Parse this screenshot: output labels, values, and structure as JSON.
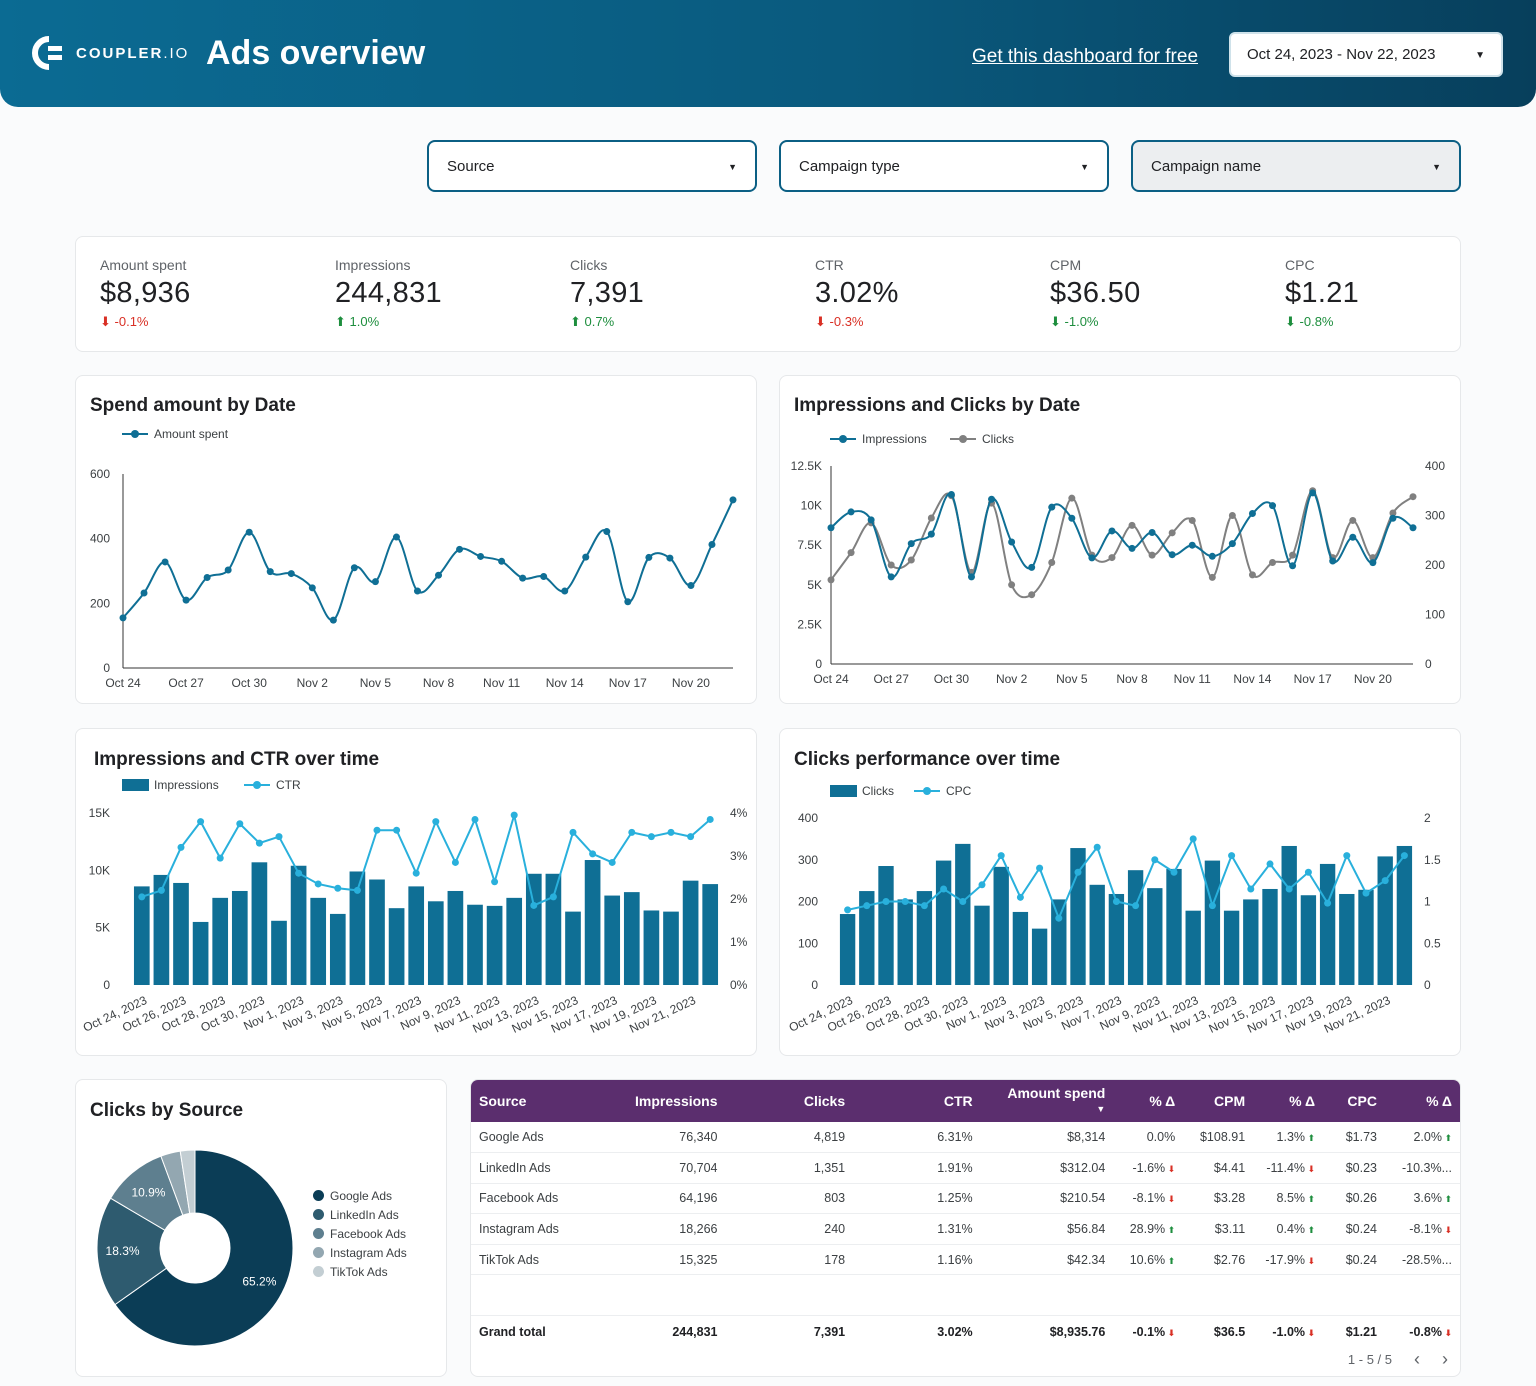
{
  "header": {
    "logo_text": "COUPLER",
    "logo_suffix": ".IO",
    "title": "Ads overview",
    "get_link": "Get this dashboard for free",
    "date_range": "Oct 24, 2023 - Nov 22, 2023"
  },
  "filters": [
    {
      "label": "Source"
    },
    {
      "label": "Campaign type"
    },
    {
      "label": "Campaign name"
    }
  ],
  "kpis": [
    {
      "label": "Amount spent",
      "value": "$8,936",
      "delta": "-0.1%",
      "dir": "down",
      "good": false
    },
    {
      "label": "Impressions",
      "value": "244,831",
      "delta": "1.0%",
      "dir": "up",
      "good": true
    },
    {
      "label": "Clicks",
      "value": "7,391",
      "delta": "0.7%",
      "dir": "up",
      "good": true
    },
    {
      "label": "CTR",
      "value": "3.02%",
      "delta": "-0.3%",
      "dir": "down",
      "good": false
    },
    {
      "label": "CPM",
      "value": "$36.50",
      "delta": "-1.0%",
      "dir": "down",
      "good": true
    },
    {
      "label": "CPC",
      "value": "$1.21",
      "delta": "-0.8%",
      "dir": "down",
      "good": true
    }
  ],
  "charts": {
    "spend_title": "Spend amount by Date",
    "imp_clicks_title": "Impressions and Clicks by Date",
    "imp_ctr_title": "Impressions and CTR over time",
    "clicks_perf_title": "Clicks performance over time",
    "by_source_title": "Clicks by Source"
  },
  "chart_data": [
    {
      "type": "line",
      "title": "Spend amount by Date",
      "x": [
        "Oct 24",
        "Oct 25",
        "Oct 26",
        "Oct 27",
        "Oct 28",
        "Oct 29",
        "Oct 30",
        "Oct 31",
        "Nov 1",
        "Nov 2",
        "Nov 3",
        "Nov 4",
        "Nov 5",
        "Nov 6",
        "Nov 7",
        "Nov 8",
        "Nov 9",
        "Nov 10",
        "Nov 11",
        "Nov 12",
        "Nov 13",
        "Nov 14",
        "Nov 15",
        "Nov 16",
        "Nov 17",
        "Nov 18",
        "Nov 19",
        "Nov 20",
        "Nov 21",
        "Nov 22"
      ],
      "x_ticks": [
        "Oct 24",
        "Oct 27",
        "Oct 30",
        "Nov 2",
        "Nov 5",
        "Nov 8",
        "Nov 11",
        "Nov 14",
        "Nov 17",
        "Nov 20"
      ],
      "series": [
        {
          "name": "Amount spent",
          "color": "#0f6f95",
          "values": [
            155,
            232,
            328,
            210,
            280,
            303,
            420,
            298,
            292,
            248,
            148,
            310,
            267,
            405,
            238,
            287,
            367,
            345,
            330,
            278,
            283,
            238,
            343,
            422,
            205,
            342,
            340,
            255,
            382,
            520
          ]
        }
      ],
      "ylim": [
        0,
        600
      ],
      "y_ticks": [
        0,
        200,
        400,
        600
      ]
    },
    {
      "type": "line",
      "title": "Impressions and Clicks by Date",
      "x_ticks": [
        "Oct 24",
        "Oct 27",
        "Oct 30",
        "Nov 2",
        "Nov 5",
        "Nov 8",
        "Nov 11",
        "Nov 14",
        "Nov 17",
        "Nov 20"
      ],
      "series": [
        {
          "name": "Impressions",
          "axis": "left",
          "color": "#0f6f95",
          "values": [
            8600,
            9600,
            9100,
            5500,
            7600,
            8200,
            10700,
            5500,
            10400,
            7700,
            6100,
            9900,
            9200,
            6700,
            8400,
            7300,
            8300,
            6900,
            7500,
            6800,
            7600,
            9500,
            10000,
            6200,
            10800,
            6500,
            8000,
            6400,
            9200,
            8600
          ]
        },
        {
          "name": "Clicks",
          "axis": "right",
          "color": "#808080",
          "values": [
            170,
            225,
            285,
            200,
            210,
            295,
            340,
            185,
            325,
            160,
            140,
            205,
            335,
            220,
            215,
            280,
            220,
            265,
            290,
            175,
            300,
            180,
            205,
            220,
            350,
            215,
            290,
            215,
            305,
            338
          ]
        }
      ],
      "ylim_left": [
        0,
        12500
      ],
      "y_ticks_left": [
        "0",
        "2.5K",
        "5K",
        "7.5K",
        "10K",
        "12.5K"
      ],
      "ylim_right": [
        0,
        400
      ],
      "y_ticks_right": [
        0,
        100,
        200,
        300,
        400
      ]
    },
    {
      "type": "bar",
      "title": "Impressions and CTR over time",
      "x_ticks": [
        "Oct 24, 2023",
        "Oct 26, 2023",
        "Oct 28, 2023",
        "Oct 30, 2023",
        "Nov 1, 2023",
        "Nov 3, 2023",
        "Nov 5, 2023",
        "Nov 7, 2023",
        "Nov 9, 2023",
        "Nov 11, 2023",
        "Nov 13, 2023",
        "Nov 15, 2023",
        "Nov 17, 2023",
        "Nov 19, 2023",
        "Nov 21, 2023"
      ],
      "series": [
        {
          "name": "Impressions",
          "axis": "left",
          "color": "#0f6f95",
          "values": [
            8600,
            9600,
            8900,
            5500,
            7600,
            8200,
            10700,
            5600,
            10400,
            7600,
            6200,
            9900,
            9200,
            6700,
            8600,
            7300,
            8200,
            7000,
            6900,
            7600,
            9700,
            9700,
            6400,
            10900,
            7800,
            8100,
            6500,
            6400,
            9100,
            8800
          ]
        },
        {
          "name": "CTR",
          "axis": "right",
          "color": "#29b0dc",
          "values": [
            2.05,
            2.2,
            3.2,
            3.8,
            2.95,
            3.75,
            3.3,
            3.45,
            2.6,
            2.35,
            2.25,
            2.2,
            3.6,
            3.6,
            2.6,
            3.8,
            2.85,
            3.85,
            2.4,
            3.95,
            1.85,
            2.05,
            3.55,
            3.05,
            2.85,
            3.55,
            3.45,
            3.55,
            3.45,
            3.85
          ]
        }
      ],
      "ylim_left": [
        0,
        15000
      ],
      "y_ticks_left": [
        "0",
        "5K",
        "10K",
        "15K"
      ],
      "ylim_right": [
        0,
        4
      ],
      "y_ticks_right": [
        "0%",
        "1%",
        "2%",
        "3%",
        "4%"
      ]
    },
    {
      "type": "bar",
      "title": "Clicks performance over time",
      "x_ticks": [
        "Oct 24, 2023",
        "Oct 26, 2023",
        "Oct 28, 2023",
        "Oct 30, 2023",
        "Nov 1, 2023",
        "Nov 3, 2023",
        "Nov 5, 2023",
        "Nov 7, 2023",
        "Nov 9, 2023",
        "Nov 11, 2023",
        "Nov 13, 2023",
        "Nov 15, 2023",
        "Nov 17, 2023",
        "Nov 19, 2023",
        "Nov 21, 2023"
      ],
      "series": [
        {
          "name": "Clicks",
          "axis": "left",
          "color": "#0f6f95",
          "values": [
            170,
            225,
            285,
            205,
            225,
            298,
            338,
            190,
            283,
            175,
            135,
            205,
            328,
            240,
            218,
            275,
            232,
            278,
            178,
            298,
            178,
            205,
            230,
            333,
            215,
            290,
            218,
            228,
            308,
            333
          ]
        },
        {
          "name": "CPC",
          "axis": "right",
          "color": "#29b0dc",
          "values": [
            0.9,
            0.95,
            1.0,
            1.0,
            0.95,
            1.15,
            1.0,
            1.2,
            1.55,
            1.05,
            1.4,
            0.8,
            1.35,
            1.65,
            1.0,
            0.95,
            1.5,
            1.35,
            1.75,
            0.95,
            1.55,
            1.15,
            1.45,
            1.15,
            1.35,
            0.98,
            1.55,
            1.1,
            1.25,
            1.55
          ]
        }
      ],
      "ylim_left": [
        0,
        400
      ],
      "y_ticks_left": [
        0,
        100,
        200,
        300,
        400
      ],
      "ylim_right": [
        0,
        2
      ],
      "y_ticks_right": [
        "0",
        "0.5",
        "1",
        "1.5",
        "2"
      ]
    },
    {
      "type": "pie",
      "title": "Clicks by Source",
      "labels": [
        "Google Ads",
        "LinkedIn Ads",
        "Facebook Ads",
        "Instagram Ads",
        "TikTok Ads"
      ],
      "values": [
        4819,
        1351,
        803,
        240,
        178
      ],
      "percent_labels": [
        "65.2%",
        "18.3%",
        "10.9%",
        "",
        ""
      ],
      "colors": [
        "#0b3d56",
        "#2e5b6f",
        "#5e7f8f",
        "#93a7b1",
        "#c3ced3"
      ]
    }
  ],
  "table": {
    "headers": [
      "Source",
      "Impressions",
      "Clicks",
      "CTR",
      "Amount spend",
      "% Δ",
      "CPM",
      "% Δ",
      "CPC",
      "% Δ"
    ],
    "sort_indicator": "▼",
    "rows": [
      {
        "cells": [
          "Google Ads",
          "76,340",
          "4,819",
          "6.31%",
          "$8,314",
          "0.0%",
          "$108.91",
          "1.3%",
          "$1.73",
          "2.0%"
        ],
        "arrows": [
          "",
          "up",
          "up"
        ]
      },
      {
        "cells": [
          "LinkedIn Ads",
          "70,704",
          "1,351",
          "1.91%",
          "$312.04",
          "-1.6%",
          "$4.41",
          "-11.4%",
          "$0.23",
          "-10.3%..."
        ],
        "arrows": [
          "down",
          "down",
          ""
        ]
      },
      {
        "cells": [
          "Facebook Ads",
          "64,196",
          "803",
          "1.25%",
          "$210.54",
          "-8.1%",
          "$3.28",
          "8.5%",
          "$0.26",
          "3.6%"
        ],
        "arrows": [
          "down",
          "up",
          "up"
        ]
      },
      {
        "cells": [
          "Instagram Ads",
          "18,266",
          "240",
          "1.31%",
          "$56.84",
          "28.9%",
          "$3.11",
          "0.4%",
          "$0.24",
          "-8.1%"
        ],
        "arrows": [
          "up",
          "up",
          "down"
        ]
      },
      {
        "cells": [
          "TikTok Ads",
          "15,325",
          "178",
          "1.16%",
          "$42.34",
          "10.6%",
          "$2.76",
          "-17.9%",
          "$0.24",
          "-28.5%..."
        ],
        "arrows": [
          "up",
          "down",
          ""
        ]
      }
    ],
    "grand_total": {
      "cells": [
        "Grand total",
        "244,831",
        "7,391",
        "3.02%",
        "$8,935.76",
        "-0.1%",
        "$36.5",
        "-1.0%",
        "$1.21",
        "-0.8%"
      ],
      "arrows": [
        "down",
        "down",
        "down"
      ]
    },
    "pager": "1 - 5 / 5"
  }
}
